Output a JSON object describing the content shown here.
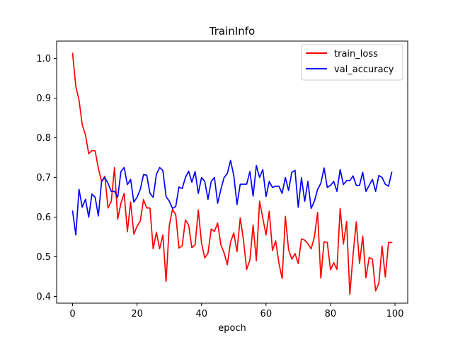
{
  "chart_data": {
    "type": "line",
    "title": "TrainInfo",
    "xlabel": "epoch",
    "ylabel": "",
    "xlim": [
      -4.95,
      103.95
    ],
    "ylim": [
      0.383,
      1.044
    ],
    "xticks": [
      0,
      20,
      40,
      60,
      80,
      100
    ],
    "yticks": [
      0.4,
      0.5,
      0.6,
      0.7,
      0.8,
      0.9,
      1.0
    ],
    "grid": false,
    "legend_position": "top-right",
    "x": [
      0,
      1,
      2,
      3,
      4,
      5,
      6,
      7,
      8,
      9,
      10,
      11,
      12,
      13,
      14,
      15,
      16,
      17,
      18,
      19,
      20,
      21,
      22,
      23,
      24,
      25,
      26,
      27,
      28,
      29,
      30,
      31,
      32,
      33,
      34,
      35,
      36,
      37,
      38,
      39,
      40,
      41,
      42,
      43,
      44,
      45,
      46,
      47,
      48,
      49,
      50,
      51,
      52,
      53,
      54,
      55,
      56,
      57,
      58,
      59,
      60,
      61,
      62,
      63,
      64,
      65,
      66,
      67,
      68,
      69,
      70,
      71,
      72,
      73,
      74,
      75,
      76,
      77,
      78,
      79,
      80,
      81,
      82,
      83,
      84,
      85,
      86,
      87,
      88,
      89,
      90,
      91,
      92,
      93,
      94,
      95,
      96,
      97,
      98,
      99
    ],
    "series": [
      {
        "name": "train_loss",
        "color": "#ff0000",
        "values": [
          1.013,
          0.93,
          0.895,
          0.833,
          0.807,
          0.76,
          0.768,
          0.767,
          0.723,
          0.69,
          0.703,
          0.623,
          0.64,
          0.725,
          0.595,
          0.635,
          0.66,
          0.563,
          0.638,
          0.557,
          0.577,
          0.59,
          0.644,
          0.623,
          0.623,
          0.52,
          0.562,
          0.52,
          0.555,
          0.438,
          0.579,
          0.62,
          0.606,
          0.522,
          0.528,
          0.593,
          0.58,
          0.523,
          0.53,
          0.618,
          0.534,
          0.497,
          0.509,
          0.57,
          0.564,
          0.585,
          0.53,
          0.51,
          0.48,
          0.537,
          0.56,
          0.513,
          0.598,
          0.542,
          0.468,
          0.492,
          0.58,
          0.49,
          0.64,
          0.598,
          0.555,
          0.615,
          0.516,
          0.54,
          0.484,
          0.445,
          0.602,
          0.518,
          0.494,
          0.508,
          0.483,
          0.545,
          0.542,
          0.533,
          0.52,
          0.55,
          0.612,
          0.446,
          0.538,
          0.536,
          0.467,
          0.485,
          0.468,
          0.622,
          0.532,
          0.589,
          0.405,
          0.505,
          0.588,
          0.483,
          0.552,
          0.447,
          0.498,
          0.494,
          0.414,
          0.433,
          0.527,
          0.449,
          0.536,
          0.536
        ]
      },
      {
        "name": "val_accuracy",
        "color": "#0000ff",
        "values": [
          0.615,
          0.555,
          0.67,
          0.625,
          0.645,
          0.6,
          0.658,
          0.65,
          0.603,
          0.69,
          0.7,
          0.685,
          0.665,
          0.665,
          0.65,
          0.715,
          0.725,
          0.682,
          0.695,
          0.638,
          0.65,
          0.67,
          0.707,
          0.706,
          0.66,
          0.65,
          0.708,
          0.725,
          0.718,
          0.652,
          0.64,
          0.622,
          0.627,
          0.676,
          0.672,
          0.7,
          0.716,
          0.688,
          0.715,
          0.66,
          0.7,
          0.69,
          0.645,
          0.69,
          0.7,
          0.635,
          0.67,
          0.7,
          0.71,
          0.743,
          0.705,
          0.632,
          0.683,
          0.683,
          0.683,
          0.715,
          0.653,
          0.73,
          0.7,
          0.72,
          0.652,
          0.69,
          0.675,
          0.678,
          0.678,
          0.66,
          0.7,
          0.667,
          0.713,
          0.718,
          0.625,
          0.7,
          0.64,
          0.69,
          0.622,
          0.64,
          0.67,
          0.685,
          0.724,
          0.675,
          0.68,
          0.69,
          0.665,
          0.72,
          0.682,
          0.692,
          0.692,
          0.704,
          0.68,
          0.68,
          0.713,
          0.665,
          0.68,
          0.695,
          0.665,
          0.705,
          0.7,
          0.683,
          0.678,
          0.713
        ]
      }
    ]
  }
}
